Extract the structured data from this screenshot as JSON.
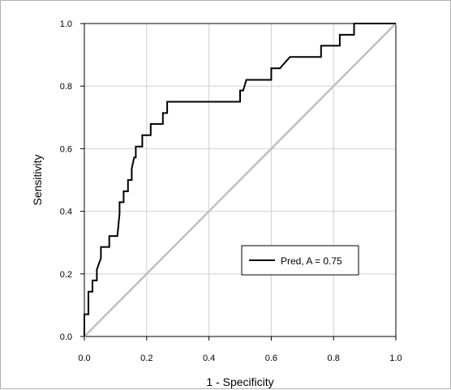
{
  "chart_data": {
    "type": "line",
    "xlabel": "1 - Specificity",
    "ylabel": "Sensitivity",
    "xlim": [
      0,
      1
    ],
    "ylim": [
      0,
      1
    ],
    "x_ticks": [
      "0.0",
      "0.2",
      "0.4",
      "0.6",
      "0.8",
      "1.0"
    ],
    "y_ticks": [
      "0.0",
      "0.2",
      "0.4",
      "0.6",
      "0.8",
      "1.0"
    ],
    "grid": true,
    "legend_position": "lower-right",
    "legend_label": "Pred, A = 0.75",
    "colors": {
      "roc": "#000000",
      "reference": "#c0c0c0",
      "grid": "#d0d0d0"
    },
    "series": [
      {
        "name": "Pred, A = 0.75",
        "x": [
          0.0,
          0.0,
          0.013,
          0.013,
          0.026,
          0.026,
          0.04,
          0.04,
          0.053,
          0.053,
          0.08,
          0.08,
          0.093,
          0.106,
          0.113,
          0.113,
          0.126,
          0.126,
          0.14,
          0.14,
          0.152,
          0.152,
          0.16,
          0.165,
          0.165,
          0.18,
          0.186,
          0.186,
          0.206,
          0.21,
          0.213,
          0.213,
          0.252,
          0.252,
          0.266,
          0.266,
          0.5,
          0.5,
          0.51,
          0.52,
          0.525,
          0.6,
          0.6,
          0.628,
          0.635,
          0.66,
          0.76,
          0.76,
          0.82,
          0.82,
          0.866,
          0.866,
          0.88,
          0.9,
          0.913,
          1.0
        ],
        "y": [
          0.0,
          0.071,
          0.071,
          0.143,
          0.143,
          0.179,
          0.179,
          0.214,
          0.25,
          0.286,
          0.286,
          0.321,
          0.321,
          0.321,
          0.393,
          0.429,
          0.429,
          0.464,
          0.464,
          0.5,
          0.5,
          0.536,
          0.572,
          0.572,
          0.607,
          0.607,
          0.607,
          0.643,
          0.643,
          0.643,
          0.643,
          0.679,
          0.679,
          0.714,
          0.714,
          0.75,
          0.75,
          0.786,
          0.786,
          0.82,
          0.82,
          0.82,
          0.857,
          0.857,
          0.865,
          0.893,
          0.893,
          0.929,
          0.929,
          0.964,
          0.964,
          1.0,
          1.0,
          1.0,
          1.0,
          1.0
        ]
      },
      {
        "x": [
          0,
          1
        ],
        "y": [
          0,
          1
        ]
      }
    ]
  }
}
